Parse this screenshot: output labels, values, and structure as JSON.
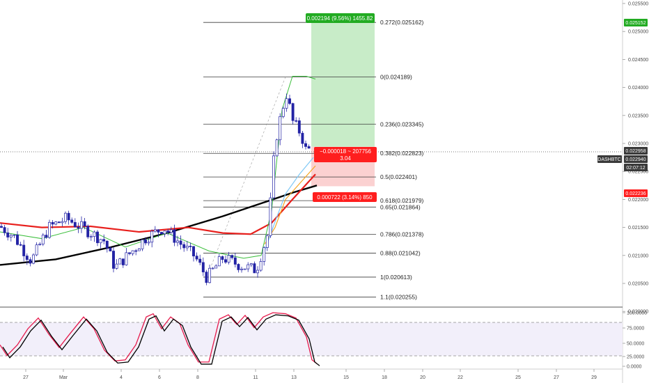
{
  "symbol": "DASHBTC",
  "price_axis": {
    "labels": [
      "0.025500",
      "0.025000",
      "0.024500",
      "0.024000",
      "0.023500",
      "0.023000",
      "0.022500",
      "0.022000",
      "0.021500",
      "0.021000",
      "0.020500",
      "0.020000"
    ],
    "current_price": "0.022958",
    "last_price": "0.022940",
    "countdown": "02:07:12",
    "target_price": "0.025152",
    "stop_price": "0.022236"
  },
  "date_axis": {
    "labels": [
      "27",
      "Mar",
      "4",
      "6",
      "8",
      "11",
      "13",
      "15",
      "18",
      "20",
      "22",
      "25",
      "27",
      "29"
    ]
  },
  "fibonacci": [
    {
      "label": "0.272(0.025162)",
      "price": 0.025162
    },
    {
      "label": "0(0.024189)",
      "price": 0.024189
    },
    {
      "label": "0.236(0.023345)",
      "price": 0.023345
    },
    {
      "label": "0.382(0.022823)",
      "price": 0.022823
    },
    {
      "label": "0.5(0.022401)",
      "price": 0.022401
    },
    {
      "label": "0.618(0.021979)",
      "price": 0.021979
    },
    {
      "label": "0.65(0.021864)",
      "price": 0.021864
    },
    {
      "label": "0.786(0.021378)",
      "price": 0.021378
    },
    {
      "label": "0.88(0.021042)",
      "price": 0.021042
    },
    {
      "label": "1(0.020613)",
      "price": 0.020613
    },
    {
      "label": "1.1(0.020255)",
      "price": 0.020255
    }
  ],
  "position": {
    "target_label": "0.002194 (9.56%) 1455.82",
    "center_line1": "−0.000018 ~ 207756",
    "center_line2": "3.04",
    "stop_label": "0.000722 (3.14%) 850",
    "colors": {
      "profit": "#22ab22",
      "loss": "#ff1e1e",
      "profit_fill": "#c8ecc8",
      "loss_fill": "#fbd1d1"
    }
  },
  "oscillator": {
    "axis_labels": [
      "100.0000",
      "75.0000",
      "50.0000",
      "25.0000",
      "0.0000"
    ],
    "colors": {
      "k": "#000000",
      "d": "#e6194b",
      "band": "#f2effa"
    }
  },
  "colors": {
    "candle": "#2323a5",
    "ma_black": "#000000",
    "ma_red": "#e8201d",
    "ma_orange": "#f5a623",
    "ma_blue": "#7ec8f5",
    "ma_green": "#3cbf3c"
  }
}
